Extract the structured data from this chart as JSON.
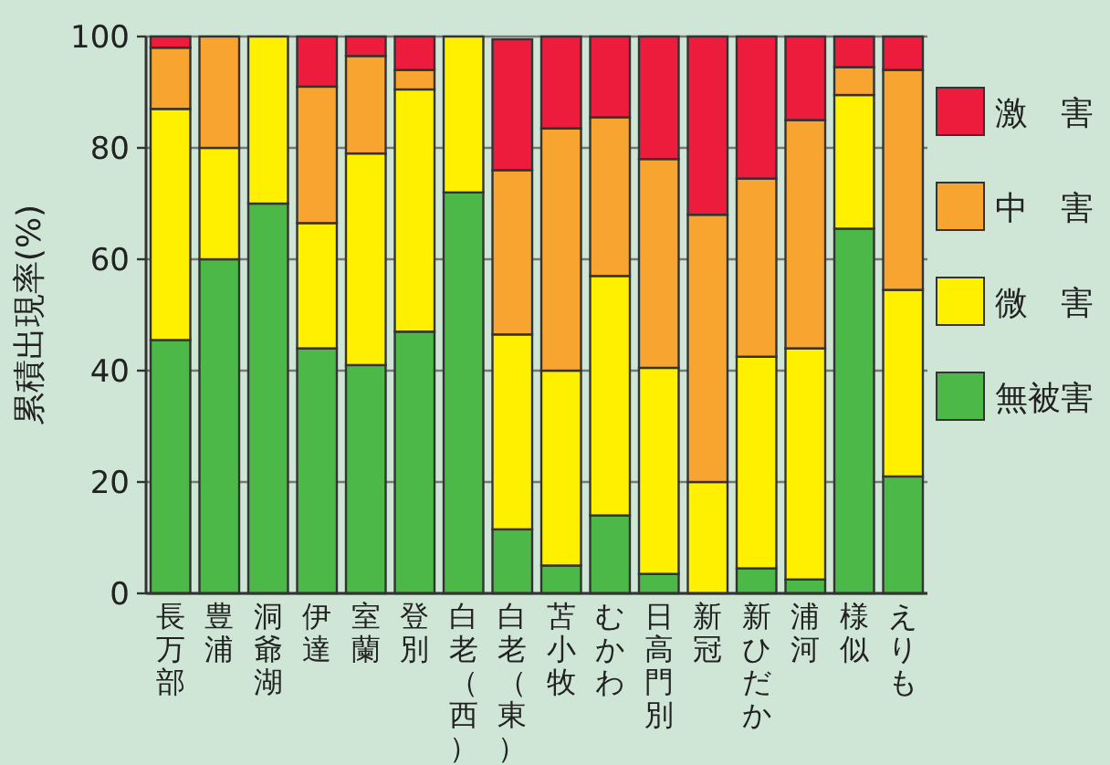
{
  "chart_data": {
    "type": "bar",
    "stacked": true,
    "ylabel": "累積出現率(%)",
    "categories": [
      "長万部",
      "豊浦",
      "洞爺湖",
      "伊達",
      "室蘭",
      "登別",
      "白老（西）",
      "白老（東）",
      "苫小牧",
      "むかわ",
      "日高門別",
      "新冠",
      "新ひだか",
      "浦河",
      "様似",
      "えりも"
    ],
    "series": [
      {
        "name": "無被害",
        "color": "#4cb848",
        "values": [
          45.5,
          60,
          70,
          44,
          41,
          47,
          72,
          11.5,
          5,
          14,
          3.5,
          0,
          4.5,
          2.5,
          65.5,
          21
        ]
      },
      {
        "name": "微　害",
        "color": "#fff000",
        "values": [
          41.5,
          20,
          30,
          22.5,
          38,
          43.5,
          28,
          35,
          35,
          43,
          37,
          20,
          38,
          41.5,
          24,
          33.5
        ]
      },
      {
        "name": "中　害",
        "color": "#f7a530",
        "values": [
          11,
          20,
          0,
          24.5,
          17.5,
          3.5,
          0,
          29.5,
          43.5,
          28.5,
          37.5,
          48,
          32,
          41,
          5,
          39.5
        ]
      },
      {
        "name": "激　害",
        "color": "#ee1c3c",
        "values": [
          2,
          0,
          0,
          9,
          3.5,
          6,
          0,
          23.5,
          16.5,
          14.5,
          22,
          32,
          25.5,
          15,
          5.5,
          6
        ]
      }
    ],
    "ylim": [
      0,
      100
    ],
    "yticks": [
      0,
      20,
      40,
      60,
      80,
      100
    ],
    "grid": "y",
    "legend": "right"
  }
}
